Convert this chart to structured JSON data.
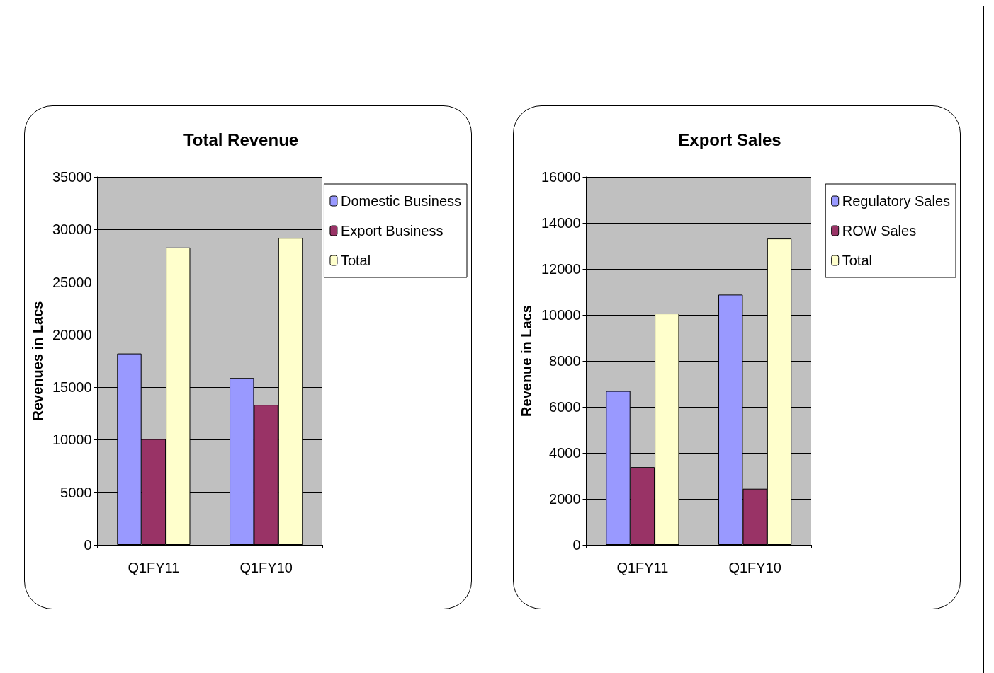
{
  "chart_data": [
    {
      "type": "bar",
      "title": "Total Revenue",
      "ylabel": "Revenues in Lacs",
      "categories": [
        "Q1FY11",
        "Q1FY10"
      ],
      "series": [
        {
          "name": "Domestic Business",
          "color": "#9999ff",
          "values": [
            18200,
            15870
          ]
        },
        {
          "name": "Export Business",
          "color": "#993366",
          "values": [
            10060,
            13320
          ]
        },
        {
          "name": "Total",
          "color": "#ffffcc",
          "values": [
            28280,
            29200
          ]
        }
      ],
      "ylim": [
        0,
        35000
      ],
      "yticks": [
        0,
        5000,
        10000,
        15000,
        20000,
        25000,
        30000,
        35000
      ],
      "grid": "y",
      "legend": "right"
    },
    {
      "type": "bar",
      "title": "Export Sales",
      "ylabel": "Revenue in Lacs",
      "categories": [
        "Q1FY11",
        "Q1FY10"
      ],
      "series": [
        {
          "name": "Regulatory Sales",
          "color": "#9999ff",
          "values": [
            6690,
            10880
          ]
        },
        {
          "name": "ROW Sales",
          "color": "#993366",
          "values": [
            3380,
            2440
          ]
        },
        {
          "name": "Total",
          "color": "#ffffcc",
          "values": [
            10060,
            13320
          ]
        }
      ],
      "ylim": [
        0,
        16000
      ],
      "yticks": [
        0,
        2000,
        4000,
        6000,
        8000,
        10000,
        12000,
        14000,
        16000
      ],
      "grid": "y",
      "legend": "right"
    }
  ]
}
